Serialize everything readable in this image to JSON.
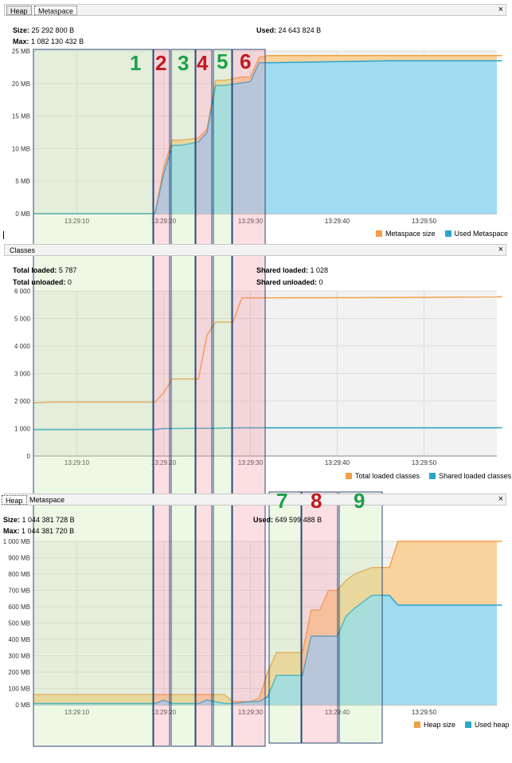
{
  "panel1": {
    "tabs": [
      {
        "label": "Heap"
      },
      {
        "label": "Metaspace"
      }
    ],
    "close": "×",
    "size_label": "Size:",
    "size_value": "25 292 800 B",
    "max_label": "Max:",
    "max_value": "1 082 130 432 B",
    "used_label": "Used:",
    "used_value": "24 643 824 B",
    "legend": [
      {
        "label": "Metaspace size",
        "color": "#f0a04b"
      },
      {
        "label": "Used Metaspace",
        "color": "#2aa6cc"
      }
    ]
  },
  "panel2": {
    "title": "Classes",
    "close": "×",
    "total_loaded_label": "Total loaded:",
    "total_loaded_value": "5 787",
    "total_unloaded_label": "Total unloaded:",
    "total_unloaded_value": "0",
    "shared_loaded_label": "Shared loaded:",
    "shared_loaded_value": "1 028",
    "shared_unloaded_label": "Shared unloaded:",
    "shared_unloaded_value": "0",
    "legend": [
      {
        "label": "Total loaded classes",
        "color": "#f0a04b"
      },
      {
        "label": "Shared loaded classes",
        "color": "#2aa6cc"
      }
    ]
  },
  "panel3": {
    "tabs": [
      {
        "label": "Heap"
      },
      {
        "label": "Metaspace"
      }
    ],
    "close": "×",
    "size_label": "Size:",
    "size_value": "1 044 381 728 B",
    "max_label": "Max:",
    "max_value": "1 044 381 720 B",
    "used_label": "Used:",
    "used_value": "649 599 488 B",
    "legend": [
      {
        "label": "Heap size",
        "color": "#f0a04b"
      },
      {
        "label": "Used heap",
        "color": "#2aa6cc"
      }
    ]
  },
  "phase_labels_top": [
    "1",
    "2",
    "3",
    "4",
    "5",
    "6"
  ],
  "phase_labels_bottom": [
    "7",
    "8",
    "9"
  ],
  "colors": {
    "green_label": "#1fa04a",
    "red_label": "#c0191e",
    "orange": "#f0a04b",
    "blue": "#2aa6cc"
  },
  "chart_data": [
    {
      "type": "area",
      "yticks": [
        "0 MB",
        "5 MB",
        "10 MB",
        "15 MB",
        "20 MB",
        "25 MB"
      ],
      "xticks": [
        "13:29:10",
        "13:29:20",
        "13:29:30",
        "13:29:40",
        "13:29:50"
      ],
      "ylim": [
        0,
        25
      ],
      "x": [
        "13:29:05",
        "13:29:19",
        "13:29:20",
        "13:29:21",
        "13:29:22",
        "13:29:24",
        "13:29:25",
        "13:29:26",
        "13:29:27",
        "13:29:29",
        "13:29:30",
        "13:29:31",
        "13:29:32",
        "13:29:46",
        "13:29:59"
      ],
      "series": [
        {
          "name": "Metaspace size",
          "values": [
            0,
            0,
            7,
            11.3,
            11.3,
            11.6,
            13,
            20.5,
            20.5,
            21,
            21,
            24,
            24.3,
            24.3,
            24.3
          ]
        },
        {
          "name": "Used Metaspace",
          "values": [
            0,
            0,
            6,
            10.5,
            10.5,
            11,
            12.5,
            19.7,
            19.7,
            20.1,
            20.3,
            23.2,
            23.2,
            23.5,
            23.5
          ]
        }
      ]
    },
    {
      "type": "line",
      "yticks": [
        "0",
        "1 000",
        "2 000",
        "3 000",
        "4 000",
        "5 000",
        "6 000"
      ],
      "xticks": [
        "13:29:10",
        "13:29:20",
        "13:29:30",
        "13:29:40",
        "13:29:50"
      ],
      "ylim": [
        0,
        6000
      ],
      "x": [
        "13:29:05",
        "13:29:07",
        "13:29:19",
        "13:29:20",
        "13:29:21",
        "13:29:24",
        "13:29:25",
        "13:29:26",
        "13:29:27",
        "13:29:28",
        "13:29:29",
        "13:29:46",
        "13:29:59"
      ],
      "series": [
        {
          "name": "Total loaded classes",
          "values": [
            1930,
            1960,
            1960,
            2300,
            2800,
            2800,
            4400,
            4870,
            4870,
            4870,
            5750,
            5760,
            5787
          ]
        },
        {
          "name": "Shared loaded classes",
          "values": [
            960,
            960,
            960,
            1000,
            1000,
            1010,
            1010,
            1010,
            1020,
            1020,
            1028,
            1028,
            1028
          ]
        }
      ]
    },
    {
      "type": "area",
      "yticks": [
        "0 MB",
        "100 MB",
        "200 MB",
        "300 MB",
        "400 MB",
        "500 MB",
        "600 MB",
        "700 MB",
        "800 MB",
        "900 MB",
        "1 000 MB"
      ],
      "xticks": [
        "13:29:10",
        "13:29:20",
        "13:29:30",
        "13:29:40",
        "13:29:50"
      ],
      "ylim": [
        0,
        1000
      ],
      "x": [
        "13:29:05",
        "13:29:19",
        "13:29:20",
        "13:29:21",
        "13:29:24",
        "13:29:25",
        "13:29:27",
        "13:29:28",
        "13:29:30",
        "13:29:31",
        "13:29:32",
        "13:29:33",
        "13:29:36",
        "13:29:37",
        "13:29:38",
        "13:29:39",
        "13:29:40",
        "13:29:41",
        "13:29:42",
        "13:29:44",
        "13:29:46",
        "13:29:47",
        "13:29:59"
      ],
      "series": [
        {
          "name": "Heap size",
          "values": [
            62,
            62,
            62,
            62,
            62,
            62,
            62,
            20,
            20,
            40,
            200,
            320,
            320,
            580,
            580,
            700,
            700,
            760,
            800,
            840,
            840,
            1000,
            1000
          ]
        },
        {
          "name": "Used heap",
          "values": [
            8,
            8,
            28,
            8,
            8,
            30,
            8,
            8,
            20,
            20,
            50,
            180,
            180,
            420,
            420,
            420,
            420,
            540,
            590,
            670,
            670,
            610,
            610
          ]
        }
      ]
    }
  ]
}
